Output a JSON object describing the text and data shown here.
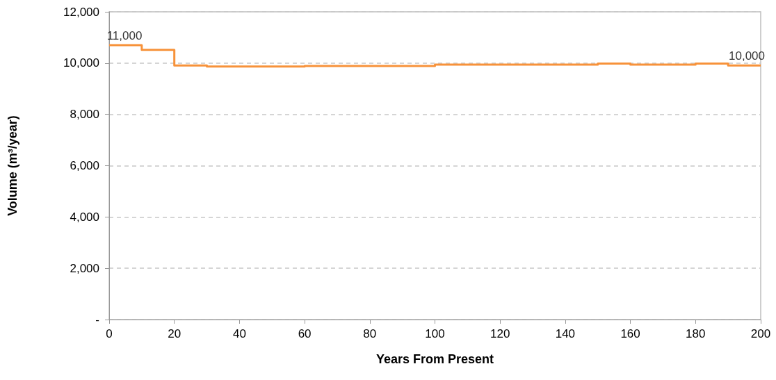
{
  "chart_data": {
    "type": "step",
    "xlabel": "Years From Present",
    "ylabel": "Volume (m³/year)",
    "x": [
      0,
      10,
      20,
      30,
      40,
      50,
      60,
      70,
      80,
      90,
      100,
      110,
      120,
      130,
      140,
      150,
      160,
      170,
      180,
      190,
      200
    ],
    "series": [
      {
        "color": "#f7923a",
        "values": [
          10700,
          10520,
          9910,
          9870,
          9870,
          9870,
          9890,
          9890,
          9890,
          9890,
          9940,
          9940,
          9940,
          9940,
          9940,
          9980,
          9940,
          9940,
          9980,
          9910,
          9910
        ]
      }
    ],
    "xlim": [
      0,
      200
    ],
    "xticks": [
      0,
      20,
      40,
      60,
      80,
      100,
      120,
      140,
      160,
      180,
      200
    ],
    "ylim": [
      0,
      12000
    ],
    "yticks": [
      {
        "value": 0,
        "label": "-"
      },
      {
        "value": 2000,
        "label": "2,000"
      },
      {
        "value": 4000,
        "label": "4,000"
      },
      {
        "value": 6000,
        "label": "6,000"
      },
      {
        "value": 8000,
        "label": "8,000"
      },
      {
        "value": 10000,
        "label": "10,000"
      },
      {
        "value": 12000,
        "label": "12,000"
      }
    ],
    "annotations": [
      {
        "text": "11,000",
        "x": 0,
        "y": 10700
      },
      {
        "text": "10,000",
        "x": 200,
        "y": 9910
      }
    ],
    "grid": "y",
    "marker": "none",
    "line_style": "solid"
  }
}
